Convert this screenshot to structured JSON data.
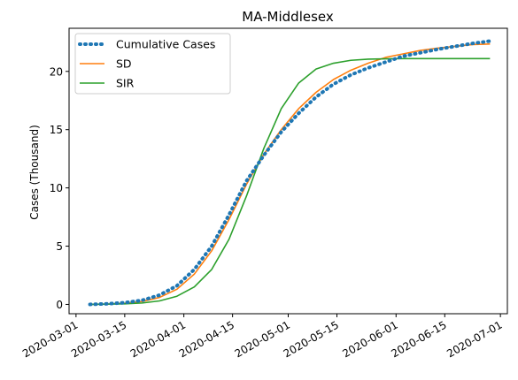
{
  "chart_data": {
    "type": "line",
    "title": "MA-Middlesex",
    "xlabel": "",
    "ylabel": "Cases (Thousand)",
    "x_axis_type": "date",
    "xlim": [
      "2020-02-28",
      "2020-07-03"
    ],
    "ylim": [
      -0.8,
      23.7
    ],
    "x_ticks": [
      "2020-03-01",
      "2020-03-15",
      "2020-04-01",
      "2020-04-15",
      "2020-05-01",
      "2020-05-15",
      "2020-06-01",
      "2020-06-15",
      "2020-07-01"
    ],
    "y_ticks": [
      0,
      5,
      10,
      15,
      20
    ],
    "grid": false,
    "legend_position": "top-left",
    "series": [
      {
        "name": "Cumulative Cases",
        "color": "#1f77b4",
        "style": "dotted",
        "x": [
          "2020-03-05",
          "2020-03-10",
          "2020-03-15",
          "2020-03-20",
          "2020-03-25",
          "2020-03-30",
          "2020-04-04",
          "2020-04-09",
          "2020-04-14",
          "2020-04-19",
          "2020-04-24",
          "2020-04-29",
          "2020-05-04",
          "2020-05-09",
          "2020-05-14",
          "2020-05-19",
          "2020-05-24",
          "2020-05-29",
          "2020-06-03",
          "2020-06-08",
          "2020-06-13",
          "2020-06-18",
          "2020-06-23",
          "2020-06-28"
        ],
        "y": [
          0.0,
          0.05,
          0.15,
          0.35,
          0.8,
          1.6,
          3.0,
          5.0,
          7.7,
          10.6,
          12.8,
          14.8,
          16.4,
          17.8,
          18.9,
          19.7,
          20.3,
          20.8,
          21.3,
          21.6,
          21.9,
          22.15,
          22.4,
          22.6
        ]
      },
      {
        "name": "SD",
        "color": "#ff7f0e",
        "style": "solid",
        "x": [
          "2020-03-05",
          "2020-03-10",
          "2020-03-15",
          "2020-03-20",
          "2020-03-25",
          "2020-03-30",
          "2020-04-04",
          "2020-04-09",
          "2020-04-14",
          "2020-04-19",
          "2020-04-24",
          "2020-04-29",
          "2020-05-04",
          "2020-05-09",
          "2020-05-14",
          "2020-05-19",
          "2020-05-24",
          "2020-05-29",
          "2020-06-03",
          "2020-06-08",
          "2020-06-13",
          "2020-06-18",
          "2020-06-23",
          "2020-06-28"
        ],
        "y": [
          0.0,
          0.03,
          0.1,
          0.25,
          0.6,
          1.3,
          2.6,
          4.6,
          7.3,
          10.3,
          12.9,
          15.0,
          16.8,
          18.2,
          19.3,
          20.1,
          20.7,
          21.2,
          21.5,
          21.8,
          22.0,
          22.15,
          22.3,
          22.35
        ]
      },
      {
        "name": "SIR",
        "color": "#2ca02c",
        "style": "solid",
        "x": [
          "2020-03-05",
          "2020-03-10",
          "2020-03-15",
          "2020-03-20",
          "2020-03-25",
          "2020-03-30",
          "2020-04-04",
          "2020-04-09",
          "2020-04-14",
          "2020-04-19",
          "2020-04-24",
          "2020-04-29",
          "2020-05-04",
          "2020-05-09",
          "2020-05-14",
          "2020-05-19",
          "2020-05-24",
          "2020-05-29",
          "2020-06-03",
          "2020-06-08",
          "2020-06-13",
          "2020-06-18",
          "2020-06-23",
          "2020-06-28"
        ],
        "y": [
          0.0,
          0.02,
          0.05,
          0.12,
          0.3,
          0.7,
          1.5,
          3.0,
          5.6,
          9.3,
          13.4,
          16.8,
          19.0,
          20.2,
          20.7,
          20.95,
          21.05,
          21.08,
          21.1,
          21.1,
          21.1,
          21.1,
          21.1,
          21.1
        ]
      }
    ]
  }
}
